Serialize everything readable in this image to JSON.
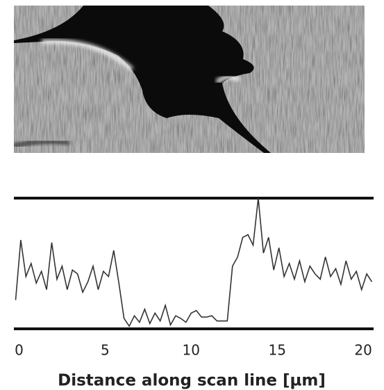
{
  "chart_data": {
    "type": "line",
    "x": [
      -0.2,
      0.1,
      0.4,
      0.7,
      1.0,
      1.3,
      1.6,
      1.9,
      2.2,
      2.5,
      2.8,
      3.1,
      3.4,
      3.7,
      4.0,
      4.3,
      4.6,
      4.9,
      5.2,
      5.5,
      5.8,
      6.1,
      6.4,
      6.7,
      7.0,
      7.3,
      7.6,
      7.9,
      8.2,
      8.5,
      8.8,
      9.1,
      9.4,
      9.7,
      10.0,
      10.3,
      10.6,
      10.9,
      11.2,
      11.5,
      11.8,
      12.1,
      12.4,
      12.7,
      13.0,
      13.3,
      13.6,
      13.9,
      14.2,
      14.5,
      14.8,
      15.1,
      15.4,
      15.7,
      16.0,
      16.3,
      16.6,
      16.9,
      17.2,
      17.5,
      17.8,
      18.1,
      18.4,
      18.7,
      19.0,
      19.3,
      19.6,
      19.9,
      20.2,
      20.5
    ],
    "values": [
      22,
      68,
      40,
      50,
      35,
      44,
      30,
      66,
      38,
      48,
      30,
      45,
      42,
      28,
      36,
      48,
      30,
      44,
      40,
      60,
      35,
      8,
      2,
      10,
      5,
      15,
      4,
      12,
      6,
      18,
      3,
      10,
      8,
      5,
      12,
      14,
      9,
      9,
      10,
      6,
      6,
      6,
      48,
      55,
      70,
      72,
      64,
      100,
      58,
      70,
      45,
      62,
      40,
      50,
      38,
      52,
      36,
      48,
      42,
      38,
      55,
      40,
      46,
      34,
      52,
      38,
      44,
      30,
      42,
      36
    ],
    "color": "#333333",
    "xlim": [
      -0.3,
      20.6
    ],
    "xticks": [
      0,
      5,
      10,
      15,
      20
    ],
    "ylim": [
      0,
      100
    ],
    "xlabel": "Distance along scan line [µm]"
  }
}
